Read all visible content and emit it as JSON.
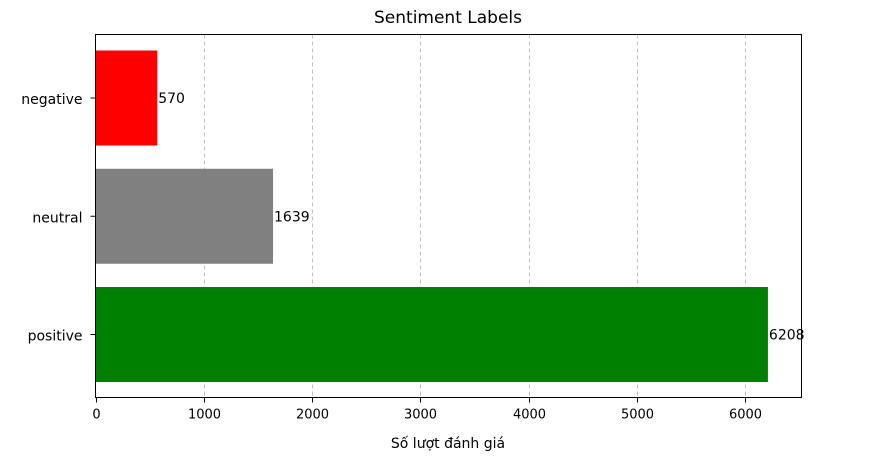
{
  "chart_data": {
    "type": "bar",
    "orientation": "horizontal",
    "title": "Sentiment Labels",
    "xlabel": "Số lượt đánh giá",
    "ylabel": "",
    "categories": [
      "negative",
      "neutral",
      "positive"
    ],
    "values": [
      570,
      1639,
      6208
    ],
    "colors": [
      "#ff0000",
      "#808080",
      "#008000"
    ],
    "xlim": [
      0,
      6518
    ],
    "xticks": [
      0,
      1000,
      2000,
      3000,
      4000,
      5000,
      6000
    ],
    "grid": "x-dashed",
    "legend": "none"
  }
}
